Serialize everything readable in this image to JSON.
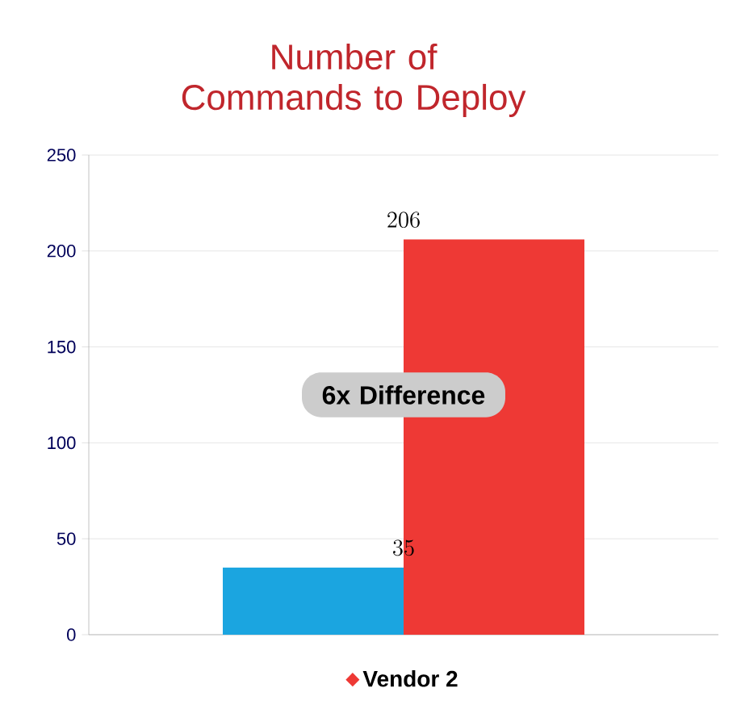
{
  "chart_data": {
    "type": "bar",
    "title": "Number of Commands to Deploy",
    "categories": [
      null
    ],
    "series": [
      {
        "color": "#1ba5e0",
        "values": [
          35
        ]
      },
      {
        "name": "Vendor 2",
        "color": "#ee3935",
        "values": [
          206
        ]
      }
    ],
    "ylim": [
      0,
      250
    ],
    "yticks": [
      0,
      50,
      100,
      150,
      200,
      250
    ],
    "grid": "y",
    "legend": "bottom",
    "data_labels": true,
    "annotations": [
      "6x Difference"
    ]
  }
}
